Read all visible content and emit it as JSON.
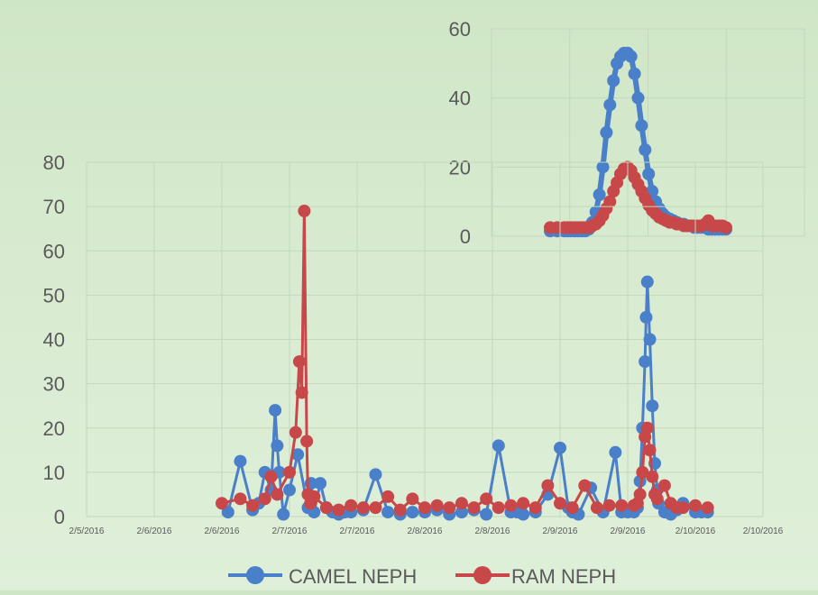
{
  "colors": {
    "camel": "#4a7fc9",
    "ram": "#c8484a",
    "grid": "#c3d8bd",
    "axis_text": "#5a5a5a"
  },
  "legend": {
    "camel": "CAMEL NEPH",
    "ram": "RAM NEPH"
  },
  "chart_data": [
    {
      "type": "line",
      "title": "",
      "xlabel": "",
      "ylabel": "",
      "xlim": [
        "2/5/2016",
        "2/10/2016 12:00"
      ],
      "ylim": [
        0,
        80
      ],
      "grid": true,
      "legend_position": "bottom",
      "x_tick_labels": [
        "2/5/2016",
        "2/6/2016",
        "2/6/2016",
        "2/7/2016",
        "2/7/2016",
        "2/8/2016",
        "2/8/2016",
        "2/9/2016",
        "2/9/2016",
        "2/10/2016",
        "2/10/2016"
      ],
      "y_tick_labels": [
        "0",
        "10",
        "20",
        "30",
        "40",
        "50",
        "60",
        "70",
        "80"
      ],
      "series": [
        {
          "name": "CAMEL NEPH",
          "x": [
            "2/6/2016 03:36",
            "2/6/2016 06:00",
            "2/6/2016 08:24",
            "2/6/2016 09:36",
            "2/6/2016 10:48",
            "2/6/2016 12:00",
            "2/6/2016 12:48",
            "2/6/2016 13:12",
            "2/6/2016 13:36",
            "2/6/2016 14:24",
            "2/6/2016 15:36",
            "2/6/2016 17:12",
            "2/6/2016 19:12",
            "2/6/2016 19:48",
            "2/6/2016 20:24",
            "2/6/2016 21:36",
            "2/6/2016 22:48",
            "2/7/2016 00:00",
            "2/7/2016 01:12",
            "2/7/2016 02:24",
            "2/7/2016 03:36",
            "2/7/2016 06:00",
            "2/7/2016 08:24",
            "2/7/2016 10:48",
            "2/7/2016 13:12",
            "2/7/2016 15:36",
            "2/7/2016 18:00",
            "2/7/2016 20:24",
            "2/7/2016 22:48",
            "2/8/2016 01:12",
            "2/8/2016 03:36",
            "2/8/2016 06:00",
            "2/8/2016 08:24",
            "2/8/2016 10:48",
            "2/8/2016 12:00",
            "2/8/2016 13:12",
            "2/8/2016 15:36",
            "2/8/2016 18:00",
            "2/8/2016 20:24",
            "2/8/2016 22:00",
            "2/8/2016 22:48",
            "2/9/2016 00:00",
            "2/9/2016 02:24",
            "2/9/2016 04:48",
            "2/9/2016 07:12",
            "2/9/2016 08:24",
            "2/9/2016 09:36",
            "2/9/2016 10:48",
            "2/9/2016 11:31",
            "2/9/2016 12:00",
            "2/9/2016 12:29",
            "2/9/2016 12:58",
            "2/9/2016 13:12",
            "2/9/2016 13:26",
            "2/9/2016 13:55",
            "2/9/2016 14:24",
            "2/9/2016 14:53",
            "2/9/2016 15:22",
            "2/9/2016 15:36",
            "2/9/2016 16:48",
            "2/9/2016 18:00",
            "2/9/2016 19:12",
            "2/9/2016 20:24",
            "2/9/2016 22:48",
            "2/10/2016 00:00",
            "2/10/2016 01:12"
          ],
          "values": [
            1,
            12.5,
            1.5,
            3,
            10,
            6,
            24,
            16,
            10,
            0.5,
            6,
            14,
            2,
            7.5,
            1,
            7.5,
            2,
            1,
            0.5,
            1,
            1,
            1.5,
            9.5,
            1,
            0.5,
            1,
            1,
            1.5,
            0.5,
            1,
            1.5,
            0.5,
            16,
            1,
            1,
            0.5,
            1,
            5,
            15.5,
            2,
            1,
            0.5,
            6.5,
            1,
            14.5,
            1,
            1,
            1,
            2,
            8,
            20,
            35,
            45,
            53,
            40,
            25,
            12,
            6,
            3,
            1,
            0.5,
            1.5,
            3,
            1,
            1,
            1
          ]
        },
        {
          "name": "RAM NEPH",
          "x": [
            "2/6/2016 02:24",
            "2/6/2016 06:00",
            "2/6/2016 08:24",
            "2/6/2016 10:48",
            "2/6/2016 12:00",
            "2/6/2016 13:12",
            "2/6/2016 15:36",
            "2/6/2016 16:48",
            "2/6/2016 17:31",
            "2/6/2016 18:00",
            "2/6/2016 18:29",
            "2/6/2016 18:58",
            "2/6/2016 19:12",
            "2/6/2016 19:41",
            "2/6/2016 20:24",
            "2/6/2016 22:48",
            "2/7/2016 01:12",
            "2/7/2016 03:36",
            "2/7/2016 06:00",
            "2/7/2016 08:24",
            "2/7/2016 10:48",
            "2/7/2016 13:12",
            "2/7/2016 15:36",
            "2/7/2016 18:00",
            "2/7/2016 20:24",
            "2/7/2016 22:48",
            "2/8/2016 01:12",
            "2/8/2016 03:36",
            "2/8/2016 06:00",
            "2/8/2016 08:24",
            "2/8/2016 10:48",
            "2/8/2016 13:12",
            "2/8/2016 15:36",
            "2/8/2016 18:00",
            "2/8/2016 20:24",
            "2/8/2016 22:48",
            "2/9/2016 01:12",
            "2/9/2016 03:36",
            "2/9/2016 06:00",
            "2/9/2016 08:24",
            "2/9/2016 10:48",
            "2/9/2016 11:31",
            "2/9/2016 12:00",
            "2/9/2016 12:29",
            "2/9/2016 12:58",
            "2/9/2016 13:26",
            "2/9/2016 13:55",
            "2/9/2016 14:24",
            "2/9/2016 14:53",
            "2/9/2016 15:22",
            "2/9/2016 16:48",
            "2/9/2016 18:00",
            "2/9/2016 19:12",
            "2/9/2016 20:24",
            "2/9/2016 22:48",
            "2/10/2016 01:12"
          ],
          "values": [
            3,
            4,
            2.5,
            4,
            9,
            5,
            10,
            19,
            35,
            28,
            69,
            17,
            5,
            3,
            4.5,
            2,
            1.5,
            2.5,
            2,
            2,
            4.5,
            1.5,
            4,
            2,
            2.5,
            2,
            3,
            2,
            4,
            2,
            2.5,
            3,
            2,
            7,
            3,
            2,
            7,
            2,
            2.5,
            2.5,
            2.5,
            3,
            5,
            10,
            18,
            20,
            15,
            9,
            5,
            4,
            7,
            3,
            2,
            2,
            2.5,
            2
          ]
        }
      ]
    },
    {
      "type": "line",
      "title": "",
      "xlabel": "",
      "ylabel": "",
      "ylim": [
        0,
        60
      ],
      "grid": true,
      "y_tick_labels": [
        "0",
        "20",
        "40",
        "60"
      ],
      "series": [
        {
          "name": "CAMEL NEPH",
          "x": [
            0,
            4,
            8,
            10,
            12,
            14,
            16,
            18,
            20,
            22,
            24,
            26,
            28,
            30,
            32,
            34,
            36,
            38,
            40,
            42,
            44,
            46,
            48,
            50,
            52,
            54,
            56,
            58,
            60,
            62,
            64,
            66,
            68,
            70,
            72,
            74,
            76,
            78,
            80,
            82,
            84,
            86,
            88,
            90,
            92,
            94,
            96,
            98,
            100
          ],
          "values": [
            1.5,
            1.5,
            1.5,
            1.5,
            1.5,
            1.5,
            1.5,
            1.5,
            1.5,
            2,
            4,
            7,
            12,
            20,
            30,
            38,
            45,
            50,
            52,
            53,
            53,
            52,
            47,
            40,
            32,
            25,
            18,
            13,
            10,
            8,
            6.5,
            5.5,
            5,
            4.5,
            4,
            3.5,
            3.5,
            3,
            3,
            2.5,
            2.5,
            2.5,
            2.5,
            2,
            2,
            2,
            2,
            2,
            2
          ]
        },
        {
          "name": "RAM NEPH",
          "x": [
            0,
            4,
            8,
            10,
            12,
            14,
            16,
            18,
            20,
            22,
            24,
            26,
            28,
            30,
            32,
            34,
            36,
            38,
            40,
            42,
            44,
            46,
            48,
            50,
            52,
            54,
            56,
            58,
            60,
            62,
            64,
            66,
            68,
            70,
            72,
            74,
            76,
            78,
            80,
            82,
            84,
            86,
            88,
            90,
            92,
            94,
            96,
            98,
            100
          ],
          "values": [
            2.5,
            2.5,
            2.5,
            2.5,
            2.5,
            2.5,
            2.5,
            2.5,
            2.5,
            2.5,
            3,
            3.5,
            4.5,
            6,
            8,
            10,
            13,
            15.5,
            18,
            19.5,
            20,
            19,
            17,
            15,
            13,
            11,
            9,
            7.5,
            6.5,
            5.5,
            5,
            4.5,
            4,
            4,
            3.5,
            3.5,
            3,
            3,
            3,
            3,
            3,
            3,
            3.5,
            4.5,
            3,
            3,
            3,
            3,
            2.5
          ]
        }
      ]
    }
  ]
}
